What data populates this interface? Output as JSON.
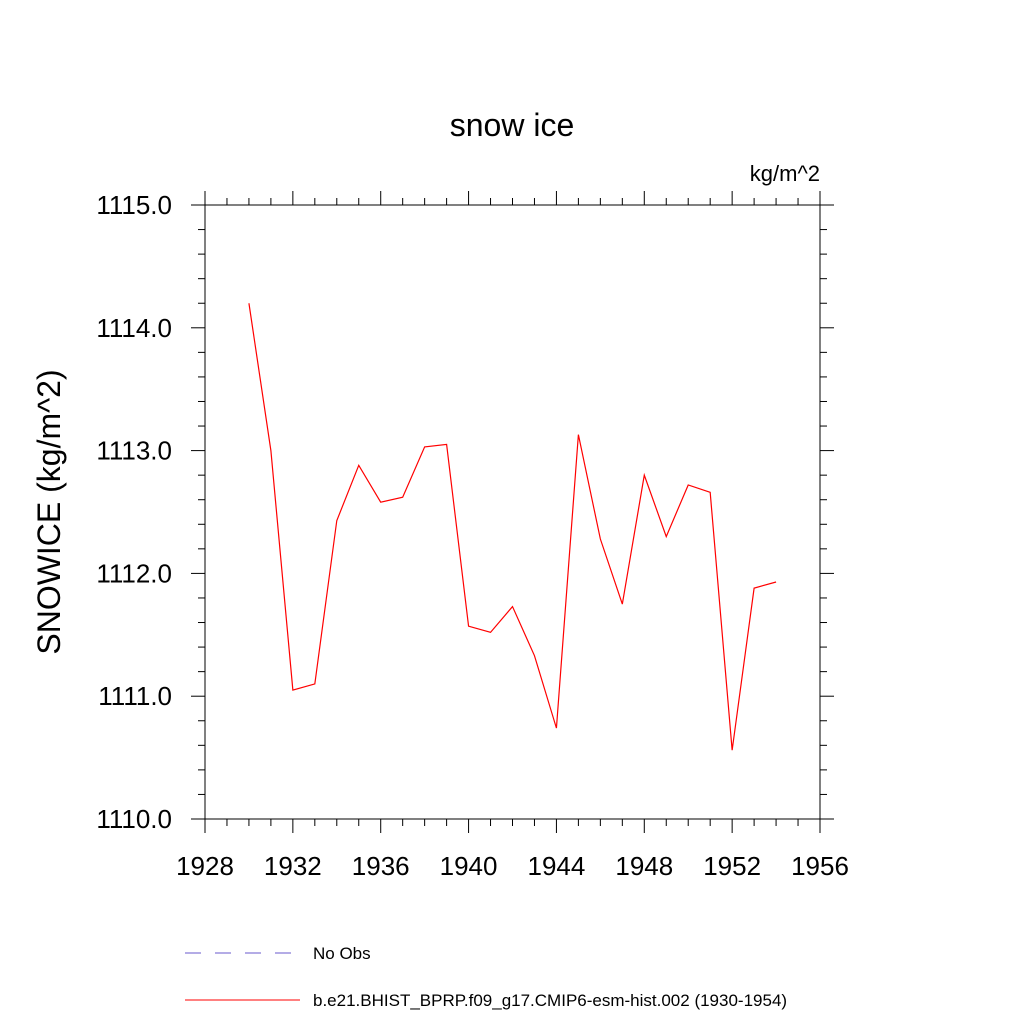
{
  "chart_data": {
    "type": "line",
    "title": "snow ice",
    "units_label": "kg/m^2",
    "ylabel": "SNOWICE  (kg/m^2)",
    "xlabel": "",
    "xlim": [
      1928,
      1956
    ],
    "ylim": [
      1110.0,
      1115.0
    ],
    "x_ticks": [
      1928,
      1932,
      1936,
      1940,
      1944,
      1948,
      1952,
      1956
    ],
    "x_tick_labels": [
      "1928",
      "1932",
      "1936",
      "1940",
      "1944",
      "1948",
      "1952",
      "1956"
    ],
    "y_ticks": [
      1110.0,
      1111.0,
      1112.0,
      1113.0,
      1114.0,
      1115.0
    ],
    "y_tick_labels": [
      "1110.0",
      "1111.0",
      "1112.0",
      "1113.0",
      "1114.0",
      "1115.0"
    ],
    "grid": false,
    "legend_position": "bottom",
    "series": [
      {
        "name": "b.e21.BHIST_BPRP.f09_g17.CMIP6-esm-hist.002 (1930-1954)",
        "color": "#ff0000",
        "style": "solid",
        "x": [
          1930,
          1931,
          1932,
          1933,
          1934,
          1935,
          1936,
          1937,
          1938,
          1939,
          1940,
          1941,
          1942,
          1943,
          1944,
          1945,
          1946,
          1947,
          1948,
          1949,
          1950,
          1951,
          1952,
          1953,
          1954
        ],
        "values": [
          1114.2,
          1113.0,
          1111.05,
          1111.1,
          1112.43,
          1112.88,
          1112.58,
          1112.62,
          1113.03,
          1113.05,
          1111.57,
          1111.52,
          1111.73,
          1111.33,
          1110.74,
          1113.13,
          1112.28,
          1111.75,
          1112.8,
          1112.3,
          1112.72,
          1112.66,
          1110.56,
          1111.88,
          1111.93
        ]
      }
    ],
    "legend_entries": [
      {
        "label": "No Obs",
        "color": "#6a5acd",
        "style": "dashed"
      },
      {
        "label": "b.e21.BHIST_BPRP.f09_g17.CMIP6-esm-hist.002 (1930-1954)",
        "color": "#ff0000",
        "style": "solid"
      }
    ]
  }
}
